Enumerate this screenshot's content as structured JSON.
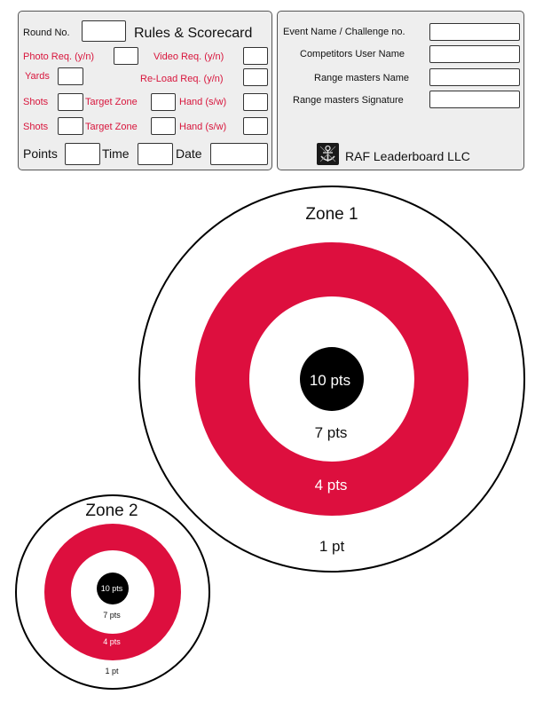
{
  "scorecard": {
    "round_label": "Round No.",
    "title": "Rules & Scorecard",
    "photo_label": "Photo Req. (y/n)",
    "video_label": "Video Req. (y/n)",
    "yards_label": "Yards",
    "reload_label": "Re-Load Req. (y/n)",
    "shots_label": "Shots",
    "target_zone_label": "Target Zone",
    "hand_label": "Hand (s/w)",
    "points_label": "Points",
    "time_label": "Time",
    "date_label": "Date"
  },
  "event": {
    "event_label": "Event Name / Challenge no.",
    "user_label": "Competitors User Name",
    "rm_name_label": "Range masters Name",
    "rm_sig_label": "Range masters Signature",
    "brand": "RAF Leaderboard LLC"
  },
  "targets": [
    {
      "title": "Zone 1",
      "ring_labels": {
        "center": "10 pts",
        "inner": "7 pts",
        "red": "4 pts",
        "outer": "1 pt"
      }
    },
    {
      "title": "Zone 2",
      "ring_labels": {
        "center": "10 pts",
        "inner": "7 pts",
        "red": "4 pts",
        "outer": "1 pt"
      }
    }
  ],
  "colors": {
    "ring_red": "#dd0f3e",
    "bullseye": "#000000",
    "panel_bg": "#eeeeee",
    "label_red": "#d8153c"
  }
}
